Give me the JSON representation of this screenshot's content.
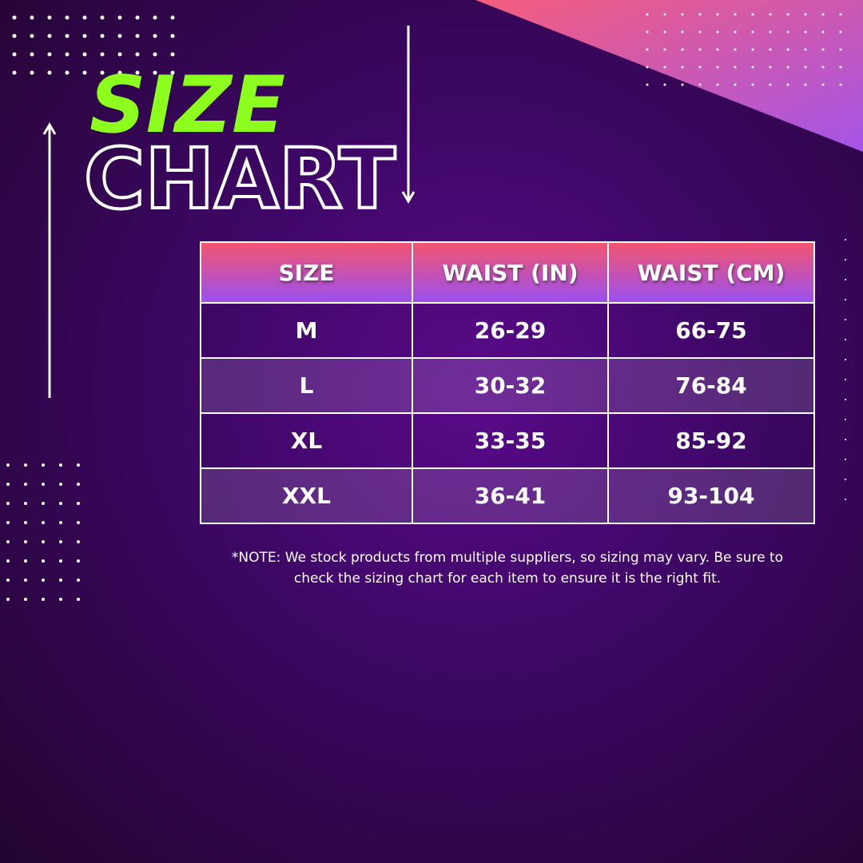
{
  "title": {
    "line1": "SIZE",
    "line2": "CHART"
  },
  "table": {
    "header": [
      "SIZE",
      "WAIST (IN)",
      "WAIST (CM)"
    ],
    "rows": [
      [
        "M",
        "26-29",
        "66-75"
      ],
      [
        "L",
        "30-32",
        "76-84"
      ],
      [
        "XL",
        "33-35",
        "85-92"
      ],
      [
        "XXL",
        "36-41",
        "93-104"
      ]
    ]
  },
  "note": "*NOTE: We stock products from multiple suppliers, so sizing may vary. Be sure to check the sizing chart for  each item to ensure it is the right fit."
}
